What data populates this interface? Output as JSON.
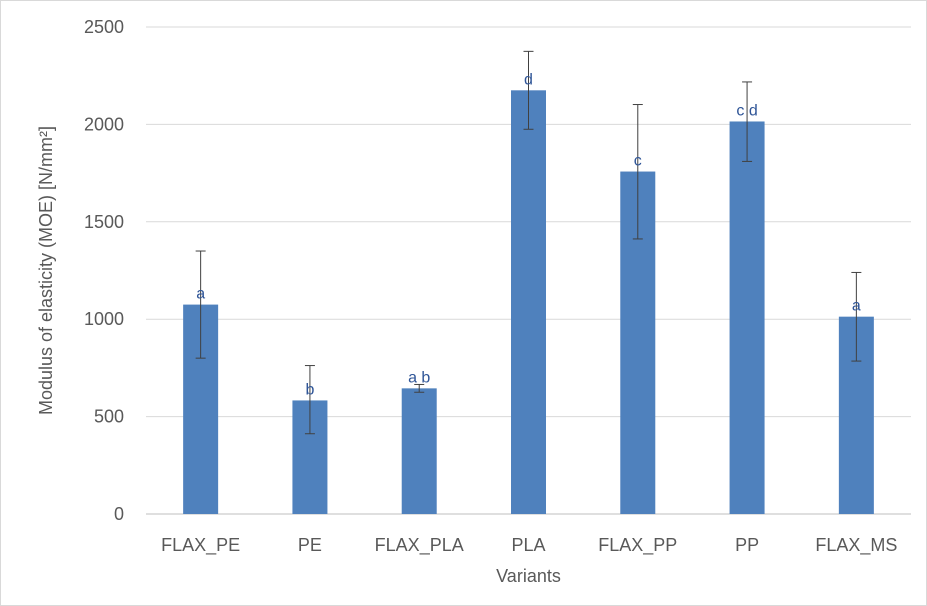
{
  "chart_data": {
    "type": "bar",
    "xlabel": "Variants",
    "ylabel": "Modulus of elasticity (MOE) [N/mm²]",
    "ylim": [
      0,
      2500
    ],
    "yticks": [
      0,
      500,
      1000,
      1500,
      2000,
      2500
    ],
    "grid": true,
    "legend": "none",
    "bar_color": "#4f81bd",
    "label_color": "#2f5597",
    "categories": [
      "FLAX_PE",
      "PE",
      "FLAX_PLA",
      "PLA",
      "FLAX_PP",
      "PP",
      "FLAX_MS"
    ],
    "values": [
      1075,
      583,
      645,
      2175,
      1758,
      2015,
      1013
    ],
    "errors_upper": [
      1350,
      762,
      665,
      2375,
      2102,
      2218,
      1240
    ],
    "errors_lower": [
      800,
      412,
      625,
      1975,
      1412,
      1810,
      785
    ],
    "data_labels": [
      "a",
      "b",
      "a b",
      "d",
      "c",
      "c d",
      "a"
    ]
  }
}
